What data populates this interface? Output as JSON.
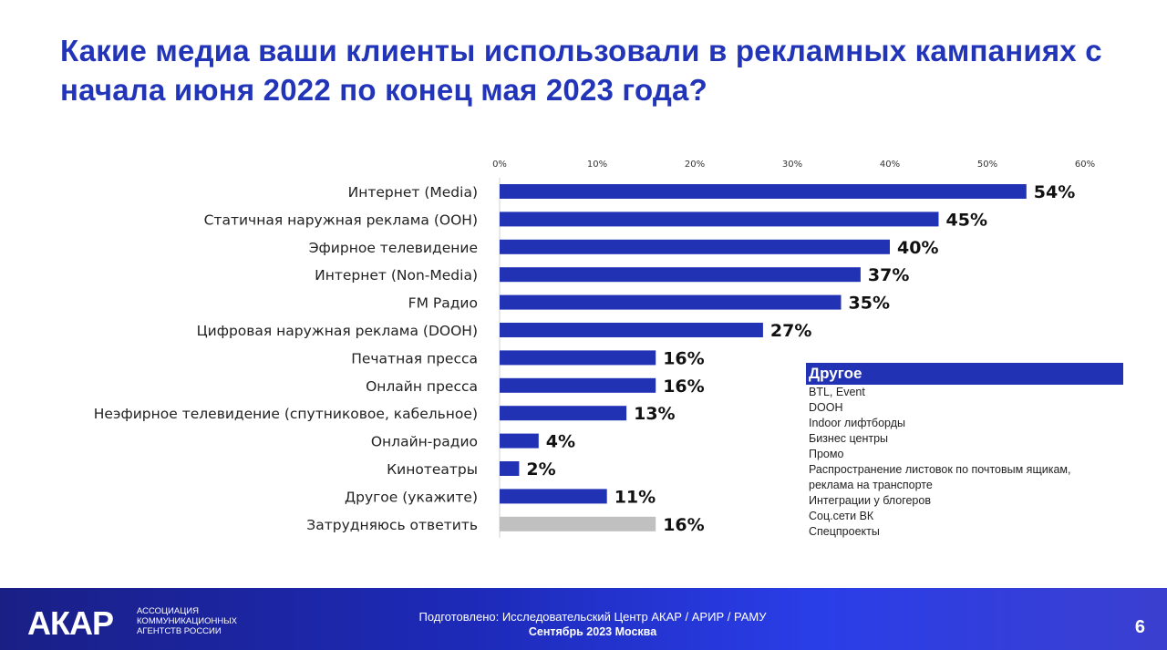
{
  "title": "Какие медиа ваши клиенты использовали в рекламных кампаниях с начала июня 2022 по конец мая 2023 года?",
  "chart_data": {
    "type": "bar",
    "orientation": "horizontal",
    "xlim": [
      0,
      60
    ],
    "ticks": [
      "0%",
      "10%",
      "20%",
      "30%",
      "40%",
      "50%",
      "60%"
    ],
    "categories": [
      "Интернет (Media)",
      "Статичная наружная реклама (OOH)",
      "Эфирное телевидение",
      "Интернет (Non-Media)",
      "FM Радио",
      "Цифровая наружная реклама (DOOH)",
      "Печатная пресса",
      "Онлайн пресса",
      "Неэфирное  телевидение (спутниковое, кабельное)",
      "Онлайн-радио",
      "Кинотеатры",
      "Другое (укажите)",
      "Затрудняюсь ответить"
    ],
    "values": [
      54,
      45,
      40,
      37,
      35,
      27,
      16,
      16,
      13,
      4,
      2,
      11,
      16
    ],
    "value_labels": [
      "54%",
      "45%",
      "40%",
      "37%",
      "35%",
      "27%",
      "16%",
      "16%",
      "13%",
      "4%",
      "2%",
      "11%",
      "16%"
    ],
    "colors": {
      "main": "#2132b5",
      "last": "#c0c0c0"
    }
  },
  "other": {
    "header": "Другое",
    "items": [
      "BTL, Event",
      "DOOH",
      "Indoor лифтборды",
      "Бизнес центры",
      "Промо",
      "Распространение листовок по почтовым ящикам,",
      "реклама на транспорте",
      "Интеграции у блогеров",
      "Соц.сети ВК",
      "Спецпроекты"
    ]
  },
  "footer": {
    "logo": "АКАР",
    "logo_sub": [
      "АССОЦИАЦИЯ",
      "КОММУНИКАЦИОННЫХ",
      "АГЕНТСТВ РОССИИ"
    ],
    "prepared": "Подготовлено: Исследовательский Центр АКАР / АРИР / РАМУ",
    "date": "Сентябрь 2023 Москва",
    "page": "6"
  }
}
